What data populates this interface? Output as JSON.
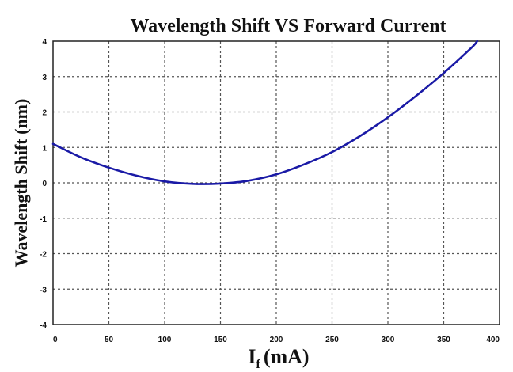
{
  "chart_data": {
    "type": "line",
    "title": "Wavelength Shift VS Forward Current",
    "ylabel": "Wavelength Shift (nm)",
    "xlabel_main": "I",
    "xlabel_sub": "f",
    "xlabel_unit": "(mA)",
    "xlim": [
      0,
      400
    ],
    "ylim": [
      -4,
      4
    ],
    "xticks": [
      0,
      50,
      100,
      150,
      200,
      250,
      300,
      350,
      400
    ],
    "yticks": [
      4,
      3,
      2,
      1,
      0,
      -1,
      -2,
      -3,
      -4
    ],
    "grid": true,
    "series": [
      {
        "color": "#1a1aa6",
        "x": [
          0,
          25,
          50,
          75,
          100,
          125,
          150,
          175,
          200,
          225,
          250,
          275,
          300,
          325,
          350,
          375,
          380
        ],
        "y": [
          1.1,
          0.72,
          0.43,
          0.2,
          0.04,
          -0.03,
          -0.02,
          0.06,
          0.24,
          0.52,
          0.87,
          1.32,
          1.85,
          2.45,
          3.1,
          3.82,
          4.0
        ]
      }
    ]
  }
}
